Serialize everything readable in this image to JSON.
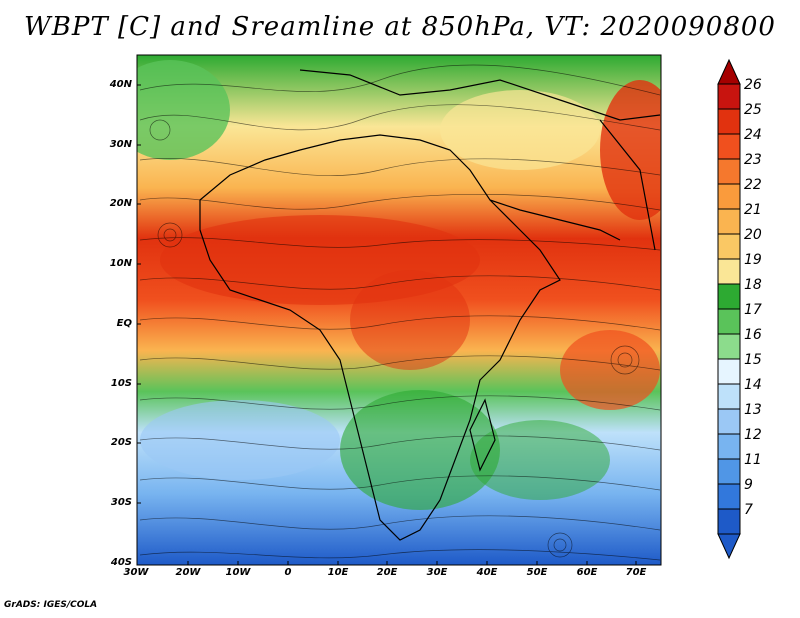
{
  "title": "WBPT [C] and Sreamline at 850hPa, VT: 2020090800",
  "footer": "GrADS: IGES/COLA",
  "map": {
    "lat_labels": [
      "40N",
      "30N",
      "20N",
      "10N",
      "EQ",
      "10S",
      "20S",
      "30S",
      "40S"
    ],
    "lon_labels": [
      "30W",
      "20W",
      "10W",
      "0",
      "10E",
      "20E",
      "30E",
      "40E",
      "50E",
      "60E",
      "70E"
    ]
  },
  "colorbar": {
    "labels": [
      "26",
      "25",
      "24",
      "23",
      "22",
      "21",
      "20",
      "19",
      "18",
      "17",
      "16",
      "15",
      "14",
      "13",
      "12",
      "11",
      "9",
      "7"
    ],
    "colors": [
      "#a50000",
      "#c8140f",
      "#e1320f",
      "#f0501e",
      "#f5782d",
      "#fa9b3c",
      "#fab450",
      "#fac864",
      "#fae696",
      "#2daa32",
      "#5ac35a",
      "#8cdc8c",
      "#e6f5ff",
      "#bee1fa",
      "#9bc8f5",
      "#78b4f0",
      "#5096e6",
      "#3278dc",
      "#1e5ac8"
    ]
  }
}
